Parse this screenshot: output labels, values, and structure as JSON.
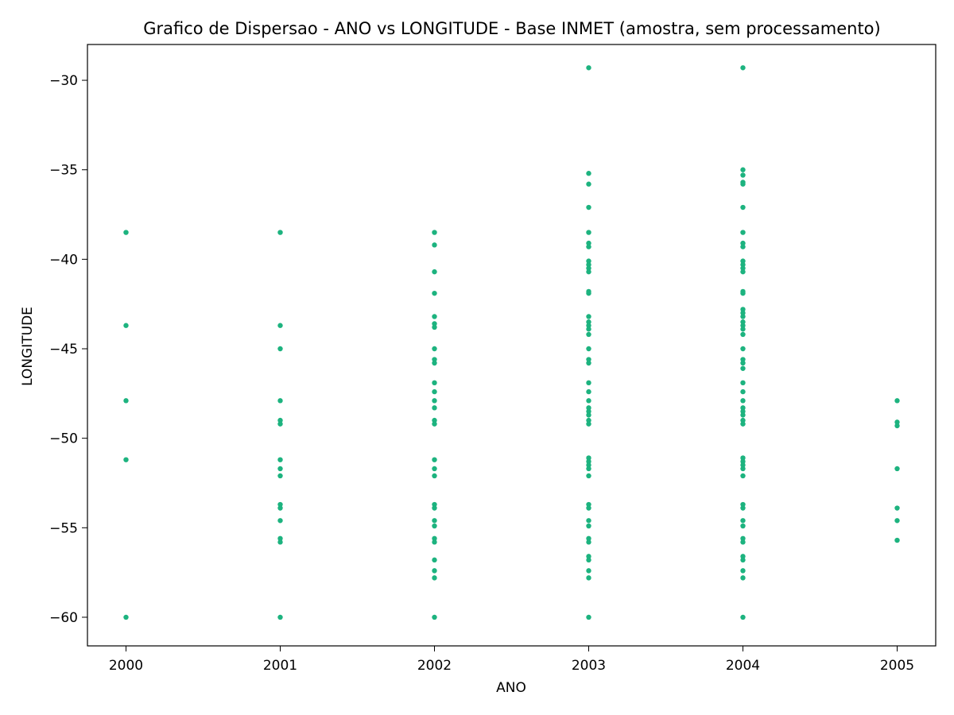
{
  "chart_data": {
    "type": "scatter",
    "title": "Grafico de Dispersao - ANO vs LONGITUDE - Base INMET (amostra, sem processamento)",
    "xlabel": "ANO",
    "ylabel": "LONGITUDE",
    "xlim": [
      1999.75,
      2005.25
    ],
    "ylim": [
      -61.6,
      -28.0
    ],
    "x_ticks": [
      2000,
      2001,
      2002,
      2003,
      2004,
      2005
    ],
    "y_ticks": [
      -30,
      -35,
      -40,
      -45,
      -50,
      -55,
      -60
    ],
    "x_tick_labels": [
      "2000",
      "2001",
      "2002",
      "2003",
      "2004",
      "2005"
    ],
    "y_tick_labels": [
      "−30",
      "−35",
      "−40",
      "−45",
      "−50",
      "−55",
      "−60"
    ],
    "grid": false,
    "marker_color": "#1db37f",
    "points": [
      {
        "year": 2000,
        "longitudes": [
          -38.5,
          -43.7,
          -47.9,
          -51.2,
          -60.0
        ]
      },
      {
        "year": 2001,
        "longitudes": [
          -38.5,
          -43.7,
          -45.0,
          -47.9,
          -49.0,
          -49.2,
          -51.2,
          -51.7,
          -52.1,
          -53.7,
          -53.9,
          -54.6,
          -55.6,
          -55.8,
          -60.0
        ]
      },
      {
        "year": 2002,
        "longitudes": [
          -38.5,
          -39.2,
          -40.7,
          -41.9,
          -43.2,
          -43.6,
          -43.8,
          -45.0,
          -45.6,
          -45.8,
          -46.9,
          -47.4,
          -47.9,
          -48.3,
          -49.0,
          -49.2,
          -51.2,
          -51.7,
          -52.1,
          -53.7,
          -53.9,
          -54.6,
          -54.9,
          -55.6,
          -55.8,
          -56.8,
          -57.4,
          -57.8,
          -60.0
        ]
      },
      {
        "year": 2003,
        "longitudes": [
          -29.3,
          -35.2,
          -35.8,
          -37.1,
          -38.5,
          -39.1,
          -39.3,
          -40.1,
          -40.3,
          -40.5,
          -40.7,
          -41.8,
          -41.9,
          -43.2,
          -43.5,
          -43.7,
          -43.9,
          -44.2,
          -45.0,
          -45.6,
          -45.8,
          -46.9,
          -47.4,
          -47.9,
          -48.3,
          -48.5,
          -48.7,
          -49.0,
          -49.2,
          -51.1,
          -51.3,
          -51.5,
          -51.7,
          -52.1,
          -53.7,
          -53.9,
          -54.6,
          -54.9,
          -55.6,
          -55.8,
          -56.6,
          -56.8,
          -57.4,
          -57.8,
          -60.0
        ]
      },
      {
        "year": 2004,
        "longitudes": [
          -29.3,
          -35.0,
          -35.3,
          -35.7,
          -35.8,
          -37.1,
          -38.5,
          -39.1,
          -39.3,
          -40.1,
          -40.3,
          -40.5,
          -40.7,
          -41.8,
          -41.9,
          -42.8,
          -43.0,
          -43.2,
          -43.5,
          -43.7,
          -43.9,
          -44.2,
          -45.0,
          -45.6,
          -45.8,
          -46.1,
          -46.9,
          -47.4,
          -47.9,
          -48.3,
          -48.5,
          -48.7,
          -49.0,
          -49.2,
          -51.1,
          -51.3,
          -51.5,
          -51.7,
          -52.1,
          -53.7,
          -53.9,
          -54.6,
          -54.9,
          -55.6,
          -55.8,
          -56.6,
          -56.8,
          -57.4,
          -57.8,
          -60.0
        ]
      },
      {
        "year": 2005,
        "longitudes": [
          -47.9,
          -49.1,
          -49.3,
          -51.7,
          -53.9,
          -54.6,
          -55.7
        ]
      }
    ]
  }
}
